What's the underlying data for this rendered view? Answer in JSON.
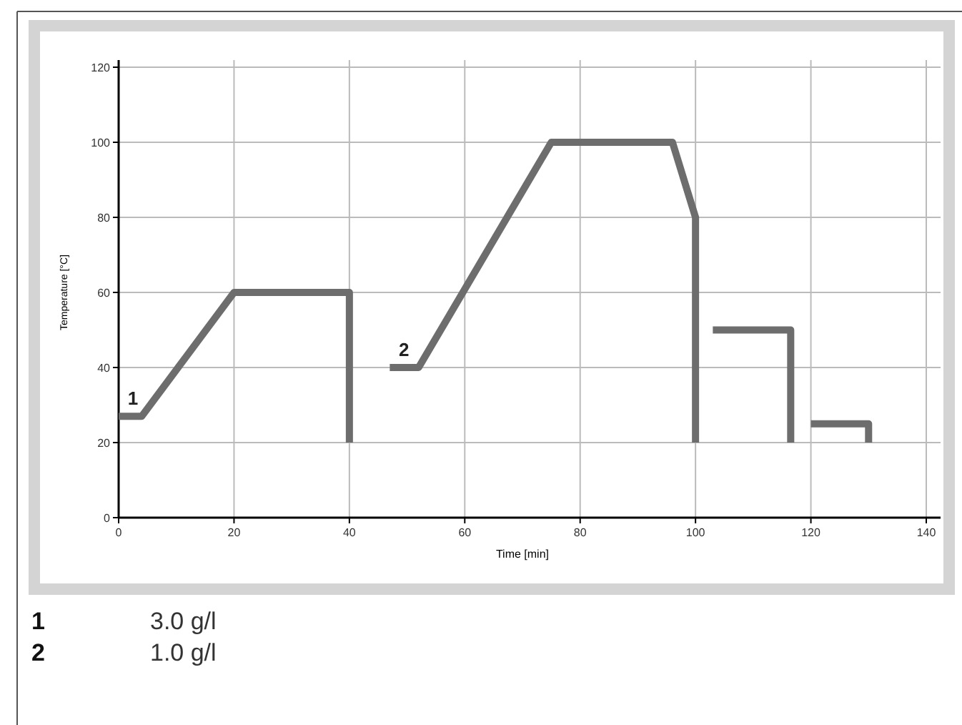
{
  "chart_data": {
    "type": "line",
    "xlabel": "Time [min]",
    "ylabel": "Temperature [°C]",
    "series": [
      {
        "color": "#6d6d6d",
        "x": [
          0,
          4,
          20,
          40,
          40
        ],
        "values": [
          27,
          27,
          60,
          60,
          20
        ]
      },
      {
        "color": "#6d6d6d",
        "x": [
          47,
          52,
          75,
          96,
          100,
          100
        ],
        "values": [
          40,
          40,
          100,
          100,
          80,
          20
        ]
      },
      {
        "color": "#6d6d6d",
        "x": [
          103,
          116.5,
          116.5
        ],
        "values": [
          50,
          50,
          20
        ]
      },
      {
        "color": "#6d6d6d",
        "x": [
          120,
          130,
          130
        ],
        "values": [
          25,
          25,
          20
        ]
      }
    ],
    "xlim": [
      0,
      140
    ],
    "xticks": [
      0,
      20,
      40,
      60,
      80,
      100,
      120,
      140
    ],
    "ylim": [
      0,
      120
    ],
    "yticks": [
      0,
      20,
      40,
      60,
      80,
      100,
      120
    ],
    "grid": true,
    "marker": "none",
    "line_style": "solid",
    "annotations": [
      "1",
      "2",
      "1 3.0 g/l",
      "2 1.0 g/l"
    ]
  }
}
